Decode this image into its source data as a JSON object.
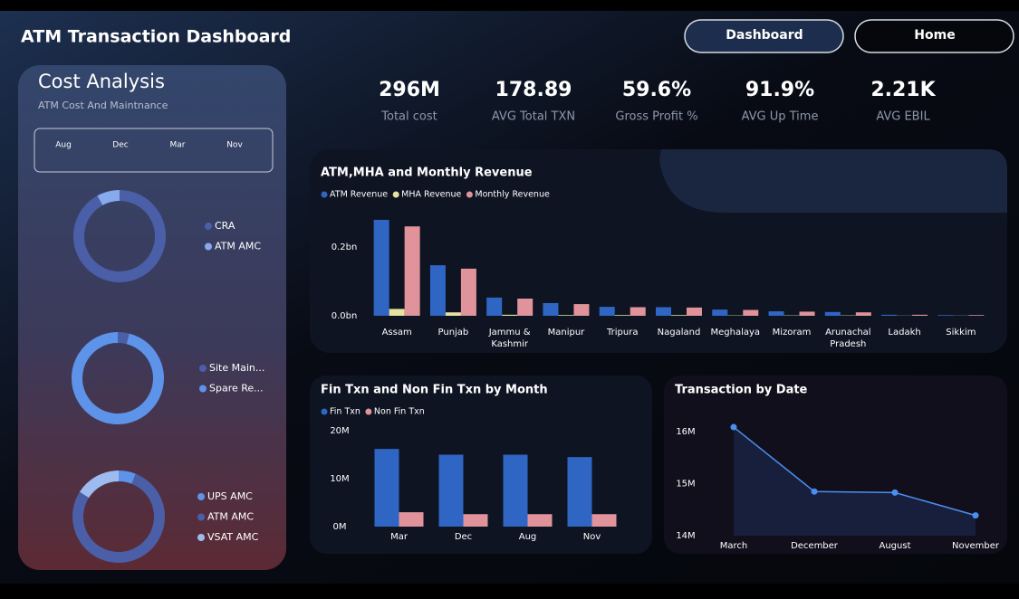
{
  "header": {
    "title": "ATM Transaction Dashboard",
    "buttons": [
      "Dashboard",
      "Home"
    ]
  },
  "cost_analysis": {
    "title": "Cost Analysis",
    "subtitle": "ATM Cost And Maintnance",
    "months": [
      "Aug",
      "Dec",
      "Mar",
      "Nov"
    ]
  },
  "kpis": [
    {
      "value": "296M",
      "label": "Total cost"
    },
    {
      "value": "178.89",
      "label": "AVG Total TXN"
    },
    {
      "value": "59.6%",
      "label": "Gross Profit %"
    },
    {
      "value": "91.9%",
      "label": "AVG Up Time"
    },
    {
      "value": "2.21K",
      "label": "AVG EBIL"
    }
  ],
  "chart_data": [
    {
      "type": "donut",
      "categories": [
        "CRA",
        "ATM AMC"
      ],
      "values": [
        92,
        8
      ],
      "colors": [
        "#4a5fa8",
        "#86aaec"
      ]
    },
    {
      "type": "donut",
      "categories": [
        "Site Main...",
        "Spare Re..."
      ],
      "values": [
        4,
        96
      ],
      "colors": [
        "#4a5fa8",
        "#5e93ea"
      ]
    },
    {
      "type": "donut",
      "categories": [
        "UPS AMC",
        "ATM AMC",
        "VSAT AMC"
      ],
      "values": [
        6,
        78,
        16
      ],
      "colors": [
        "#5e93ea",
        "#4a5fa8",
        "#9dbbef"
      ]
    },
    {
      "type": "bar",
      "title": "ATM,MHA and Monthly Revenue",
      "categories": [
        "Assam",
        "Punjab",
        "Jammu & Kashmir",
        "Manipur",
        "Tripura",
        "Nagaland",
        "Meghalaya",
        "Mizoram",
        "Arunachal Pradesh",
        "Ladakh",
        "Sikkim"
      ],
      "series": [
        {
          "name": "ATM Revenue",
          "color": "#2f66c4",
          "values": [
            0.279,
            0.147,
            0.053,
            0.037,
            0.026,
            0.025,
            0.018,
            0.013,
            0.011,
            0.003,
            0.002
          ]
        },
        {
          "name": "MHA Revenue",
          "color": "#e6e2a0",
          "values": [
            0.02,
            0.01,
            0.003,
            0.002,
            0.002,
            0.002,
            0.001,
            0.001,
            0.001,
            0.0005,
            0.0005
          ]
        },
        {
          "name": "Monthly Revenue",
          "color": "#e0939a",
          "values": [
            0.26,
            0.137,
            0.05,
            0.034,
            0.025,
            0.024,
            0.017,
            0.012,
            0.01,
            0.003,
            0.002
          ]
        }
      ],
      "ylim": [
        0,
        0.3
      ],
      "yticks": [
        {
          "value": 0,
          "label": "0.0bn"
        },
        {
          "value": 0.2,
          "label": "0.2bn"
        }
      ]
    },
    {
      "type": "bar",
      "title": "Fin Txn and Non Fin Txn by Month",
      "categories": [
        "Mar",
        "Dec",
        "Aug",
        "Nov"
      ],
      "series": [
        {
          "name": "Fin Txn",
          "color": "#2f66c4",
          "values": [
            16.2,
            15.0,
            15.0,
            14.5
          ]
        },
        {
          "name": "Non Fin Txn",
          "color": "#e0939a",
          "values": [
            3.0,
            2.6,
            2.6,
            2.6
          ]
        }
      ],
      "ylim": [
        0,
        20
      ],
      "yticks": [
        {
          "value": 0,
          "label": "0M"
        },
        {
          "value": 10,
          "label": "10M"
        },
        {
          "value": 20,
          "label": "20M"
        }
      ]
    },
    {
      "type": "line",
      "title": "Transaction by Date",
      "categories": [
        "March",
        "December",
        "August",
        "November"
      ],
      "values": [
        16.09,
        14.85,
        14.83,
        14.39
      ],
      "color": "#4a8ff0",
      "ylim": [
        14,
        16.3
      ],
      "yticks": [
        {
          "value": 14,
          "label": "14M"
        },
        {
          "value": 15,
          "label": "15M"
        },
        {
          "value": 16,
          "label": "16M"
        }
      ]
    }
  ]
}
